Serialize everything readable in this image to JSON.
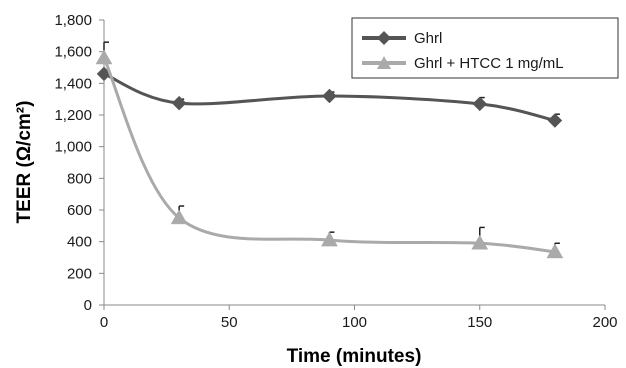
{
  "chart_data": {
    "type": "line",
    "xlabel": "Time (minutes)",
    "ylabel": "TEER (Ω/cm²)",
    "xlim": [
      0,
      200
    ],
    "ylim": [
      0,
      1800
    ],
    "x_ticks": [
      0,
      50,
      100,
      150,
      200
    ],
    "x_tick_labels": [
      "0",
      "50",
      "100",
      "150",
      "200"
    ],
    "y_ticks": [
      0,
      200,
      400,
      600,
      800,
      1000,
      1200,
      1400,
      1600,
      1800
    ],
    "y_tick_labels": [
      "0",
      "200",
      "400",
      "600",
      "800",
      "1,000",
      "1,200",
      "1,400",
      "1,600",
      "1,800"
    ],
    "grid": false,
    "legend_position": "top-right",
    "series": [
      {
        "name": "Ghrl",
        "color": "#555555",
        "marker": "diamond",
        "x": [
          0,
          30,
          90,
          150,
          180
        ],
        "y": [
          1460,
          1275,
          1320,
          1270,
          1165
        ],
        "error": [
          0,
          25,
          25,
          40,
          40
        ]
      },
      {
        "name": "Ghrl + HTCC 1 mg/mL",
        "color": "#aaaaaa",
        "marker": "triangle",
        "x": [
          0,
          30,
          90,
          150,
          180
        ],
        "y": [
          1560,
          550,
          410,
          390,
          335
        ],
        "error": [
          100,
          75,
          50,
          100,
          55
        ]
      }
    ]
  }
}
